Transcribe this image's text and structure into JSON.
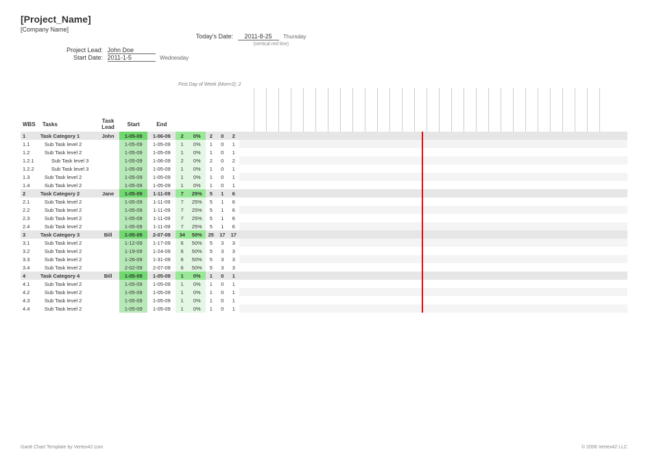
{
  "header": {
    "project_title": "[Project_Name]",
    "company": "[Company Name]",
    "today_lbl": "Today's Date:",
    "today_val": "2011-8-25",
    "today_day": "Thursday",
    "today_hint": "(vertical red line)",
    "lead_lbl": "Project Lead:",
    "lead_val": "John Doe",
    "start_lbl": "Start Date:",
    "start_val": "2011-1-5",
    "start_day": "Wednesday",
    "fdow_lbl": "First Day of Week (Mon=2):",
    "fdow_val": "2"
  },
  "columns": {
    "wbs": "WBS",
    "tasks": "Tasks",
    "lead": "Task Lead",
    "start": "Start",
    "end": "End"
  },
  "gantt": {
    "redline_pct": 47,
    "num_calendar_cols": 29
  },
  "rows": [
    {
      "wbs": "1",
      "task": "Task Category 1",
      "lead": "John",
      "start": "1-05-09",
      "end": "1-06-09",
      "dur": "2",
      "pct": "0%",
      "a": "2",
      "b": "0",
      "c": "2",
      "cat": true,
      "lvl": 1
    },
    {
      "wbs": "1.1",
      "task": "Sub Task level 2",
      "lead": "",
      "start": "1-05-09",
      "end": "1-05-09",
      "dur": "1",
      "pct": "0%",
      "a": "1",
      "b": "0",
      "c": "1",
      "cat": false,
      "lvl": 2
    },
    {
      "wbs": "1.2",
      "task": "Sub Task level 2",
      "lead": "",
      "start": "1-05-09",
      "end": "1-05-09",
      "dur": "1",
      "pct": "0%",
      "a": "1",
      "b": "0",
      "c": "1",
      "cat": false,
      "lvl": 2
    },
    {
      "wbs": "1.2.1",
      "task": "Sub Task level 3",
      "lead": "",
      "start": "1-05-09",
      "end": "1-06-09",
      "dur": "2",
      "pct": "0%",
      "a": "2",
      "b": "0",
      "c": "2",
      "cat": false,
      "lvl": 3
    },
    {
      "wbs": "1.2.2",
      "task": "Sub Task level 3",
      "lead": "",
      "start": "1-05-09",
      "end": "1-05-09",
      "dur": "1",
      "pct": "0%",
      "a": "1",
      "b": "0",
      "c": "1",
      "cat": false,
      "lvl": 3
    },
    {
      "wbs": "1.3",
      "task": "Sub Task level 2",
      "lead": "",
      "start": "1-05-09",
      "end": "1-05-09",
      "dur": "1",
      "pct": "0%",
      "a": "1",
      "b": "0",
      "c": "1",
      "cat": false,
      "lvl": 2
    },
    {
      "wbs": "1.4",
      "task": "Sub Task level 2",
      "lead": "",
      "start": "1-05-09",
      "end": "1-05-09",
      "dur": "1",
      "pct": "0%",
      "a": "1",
      "b": "0",
      "c": "1",
      "cat": false,
      "lvl": 2
    },
    {
      "wbs": "2",
      "task": "Task Category 2",
      "lead": "Jane",
      "start": "1-05-09",
      "end": "1-11-09",
      "dur": "7",
      "pct": "25%",
      "a": "5",
      "b": "1",
      "c": "6",
      "cat": true,
      "lvl": 1
    },
    {
      "wbs": "2.1",
      "task": "Sub Task level 2",
      "lead": "",
      "start": "1-05-09",
      "end": "1-11-09",
      "dur": "7",
      "pct": "25%",
      "a": "5",
      "b": "1",
      "c": "6",
      "cat": false,
      "lvl": 2
    },
    {
      "wbs": "2.2",
      "task": "Sub Task level 2",
      "lead": "",
      "start": "1-05-09",
      "end": "1-11-09",
      "dur": "7",
      "pct": "25%",
      "a": "5",
      "b": "1",
      "c": "6",
      "cat": false,
      "lvl": 2
    },
    {
      "wbs": "2.3",
      "task": "Sub Task level 2",
      "lead": "",
      "start": "1-05-09",
      "end": "1-11-09",
      "dur": "7",
      "pct": "25%",
      "a": "5",
      "b": "1",
      "c": "6",
      "cat": false,
      "lvl": 2
    },
    {
      "wbs": "2.4",
      "task": "Sub Task level 2",
      "lead": "",
      "start": "1-05-09",
      "end": "1-11-09",
      "dur": "7",
      "pct": "25%",
      "a": "5",
      "b": "1",
      "c": "6",
      "cat": false,
      "lvl": 2
    },
    {
      "wbs": "3",
      "task": "Task Category 3",
      "lead": "Bill",
      "start": "1-05-09",
      "end": "2-07-09",
      "dur": "34",
      "pct": "50%",
      "a": "25",
      "b": "17",
      "c": "17",
      "cat": true,
      "lvl": 1
    },
    {
      "wbs": "3.1",
      "task": "Sub Task level 2",
      "lead": "",
      "start": "1-12-09",
      "end": "1-17-09",
      "dur": "6",
      "pct": "50%",
      "a": "5",
      "b": "3",
      "c": "3",
      "cat": false,
      "lvl": 2
    },
    {
      "wbs": "3.2",
      "task": "Sub Task level 2",
      "lead": "",
      "start": "1-19-09",
      "end": "1-24-09",
      "dur": "6",
      "pct": "50%",
      "a": "5",
      "b": "3",
      "c": "3",
      "cat": false,
      "lvl": 2
    },
    {
      "wbs": "3.3",
      "task": "Sub Task level 2",
      "lead": "",
      "start": "1-26-09",
      "end": "1-31-09",
      "dur": "6",
      "pct": "50%",
      "a": "5",
      "b": "3",
      "c": "3",
      "cat": false,
      "lvl": 2
    },
    {
      "wbs": "3.4",
      "task": "Sub Task level 2",
      "lead": "",
      "start": "2-02-09",
      "end": "2-07-09",
      "dur": "6",
      "pct": "50%",
      "a": "5",
      "b": "3",
      "c": "3",
      "cat": false,
      "lvl": 2
    },
    {
      "wbs": "4",
      "task": "Task Category 4",
      "lead": "Bill",
      "start": "1-05-09",
      "end": "1-05-09",
      "dur": "1",
      "pct": "0%",
      "a": "1",
      "b": "0",
      "c": "1",
      "cat": true,
      "lvl": 1
    },
    {
      "wbs": "4.1",
      "task": "Sub Task level 2",
      "lead": "",
      "start": "1-05-09",
      "end": "1-05-09",
      "dur": "1",
      "pct": "0%",
      "a": "1",
      "b": "0",
      "c": "1",
      "cat": false,
      "lvl": 2
    },
    {
      "wbs": "4.2",
      "task": "Sub Task level 2",
      "lead": "",
      "start": "1-05-09",
      "end": "1-05-09",
      "dur": "1",
      "pct": "0%",
      "a": "1",
      "b": "0",
      "c": "1",
      "cat": false,
      "lvl": 2
    },
    {
      "wbs": "4.3",
      "task": "Sub Task level 2",
      "lead": "",
      "start": "1-05-09",
      "end": "1-05-09",
      "dur": "1",
      "pct": "0%",
      "a": "1",
      "b": "0",
      "c": "1",
      "cat": false,
      "lvl": 2
    },
    {
      "wbs": "4.4",
      "task": "Sub Task level 2",
      "lead": "",
      "start": "1-05-09",
      "end": "1-05-09",
      "dur": "1",
      "pct": "0%",
      "a": "1",
      "b": "0",
      "c": "1",
      "cat": false,
      "lvl": 2
    }
  ],
  "footer": {
    "left": "Gantt Chart Template by Vertex42.com",
    "right": "© 2006 Vertex42 LLC"
  }
}
